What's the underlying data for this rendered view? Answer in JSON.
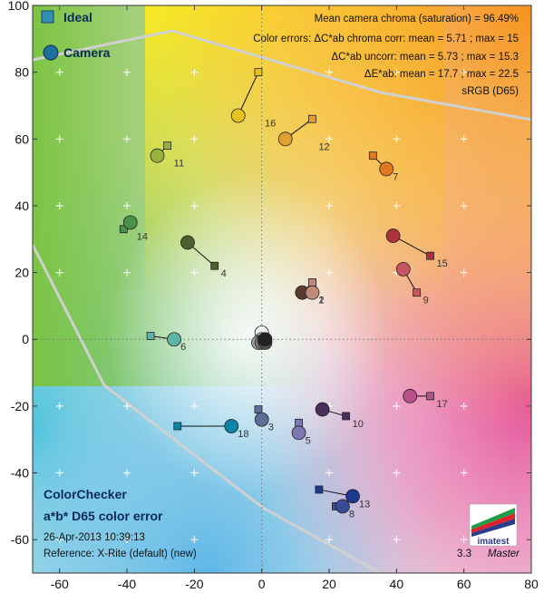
{
  "chart_data": {
    "type": "scatter",
    "xlim": [
      -68,
      80
    ],
    "ylim": [
      -70,
      100
    ],
    "xticks": [
      -60,
      -40,
      -20,
      0,
      20,
      40,
      60,
      80
    ],
    "yticks": [
      -60,
      -40,
      -20,
      0,
      20,
      40,
      60,
      80,
      100
    ],
    "grid": true,
    "legend": {
      "position": "top-left",
      "ideal_label": "Ideal",
      "camera_label": "Camera"
    },
    "info_lines": [
      "Mean camera chroma (saturation) = 96.49%",
      "Color errors: ΔC*ab chroma corr:  mean = 5.71 ;  max = 15",
      "ΔC*ab uncorr:  mean = 5.73 ;  max = 15.3",
      "ΔE*ab:  mean = 17.7 ;  max = 22.5",
      "sRGB (D65)"
    ],
    "title_lines": [
      "ColorChecker",
      "a*b* D65 color error"
    ],
    "footer_lines": [
      "26-Apr-2013 10:39:13",
      "Reference: X-Rite (default) (new)"
    ],
    "version": "3.3",
    "edition": "Master",
    "logo_text": "imatest",
    "patches": [
      {
        "id": "1",
        "ideal": [
          15,
          17
        ],
        "camera": [
          12,
          14
        ],
        "color": "#5a3a2e"
      },
      {
        "id": "2",
        "ideal": [
          15,
          17
        ],
        "camera": [
          15,
          14
        ],
        "color": "#c08a78"
      },
      {
        "id": "3",
        "ideal": [
          -1,
          -21
        ],
        "camera": [
          0,
          -24
        ],
        "color": "#5a6e96"
      },
      {
        "id": "4",
        "ideal": [
          -14,
          22
        ],
        "camera": [
          -22,
          29
        ],
        "color": "#4e5e2e"
      },
      {
        "id": "5",
        "ideal": [
          11,
          -25
        ],
        "camera": [
          11,
          -28
        ],
        "color": "#7c78b2"
      },
      {
        "id": "6",
        "ideal": [
          -33,
          1
        ],
        "camera": [
          -26,
          0
        ],
        "color": "#5cb4a6"
      },
      {
        "id": "7",
        "ideal": [
          33,
          55
        ],
        "camera": [
          37,
          51
        ],
        "color": "#e07a22"
      },
      {
        "id": "8",
        "ideal": [
          22,
          -50
        ],
        "camera": [
          24,
          -50
        ],
        "color": "#3a4c98"
      },
      {
        "id": "9",
        "ideal": [
          46,
          14
        ],
        "camera": [
          42,
          21
        ],
        "color": "#c45664"
      },
      {
        "id": "10",
        "ideal": [
          25,
          -23
        ],
        "camera": [
          18,
          -21
        ],
        "color": "#4a2e5a"
      },
      {
        "id": "11",
        "ideal": [
          -28,
          58
        ],
        "camera": [
          -31,
          55
        ],
        "color": "#98b23a"
      },
      {
        "id": "12",
        "ideal": [
          15,
          66
        ],
        "camera": [
          7,
          60
        ],
        "color": "#e0a030"
      },
      {
        "id": "13",
        "ideal": [
          17,
          -45
        ],
        "camera": [
          27,
          -47
        ],
        "color": "#1e3a8c"
      },
      {
        "id": "14",
        "ideal": [
          -41,
          33
        ],
        "camera": [
          -39,
          35
        ],
        "color": "#4a9248"
      },
      {
        "id": "15",
        "ideal": [
          50,
          25
        ],
        "camera": [
          39,
          31
        ],
        "color": "#b0303a"
      },
      {
        "id": "16",
        "ideal": [
          -1,
          80
        ],
        "camera": [
          -7,
          67
        ],
        "color": "#e6c21e"
      },
      {
        "id": "17",
        "ideal": [
          50,
          -17
        ],
        "camera": [
          44,
          -17
        ],
        "color": "#b8508c"
      },
      {
        "id": "18",
        "ideal": [
          -25,
          -26
        ],
        "camera": [
          -9,
          -26
        ],
        "color": "#0a86a8"
      },
      {
        "id": "",
        "ideal": [
          0,
          0
        ],
        "camera": [
          0,
          2
        ],
        "color": "#f2f2f2"
      },
      {
        "id": "",
        "ideal": [
          0,
          0
        ],
        "camera": [
          0,
          0
        ],
        "color": "#c8c8c8"
      },
      {
        "id": "",
        "ideal": [
          0,
          0
        ],
        "camera": [
          -1,
          -1
        ],
        "color": "#a0a0a0"
      },
      {
        "id": "",
        "ideal": [
          0,
          0
        ],
        "camera": [
          0,
          -1
        ],
        "color": "#7a7a7a"
      },
      {
        "id": "",
        "ideal": [
          0,
          0
        ],
        "camera": [
          1,
          -1
        ],
        "color": "#505050"
      },
      {
        "id": "",
        "ideal": [
          0,
          0
        ],
        "camera": [
          1,
          0
        ],
        "color": "#222222"
      }
    ]
  }
}
